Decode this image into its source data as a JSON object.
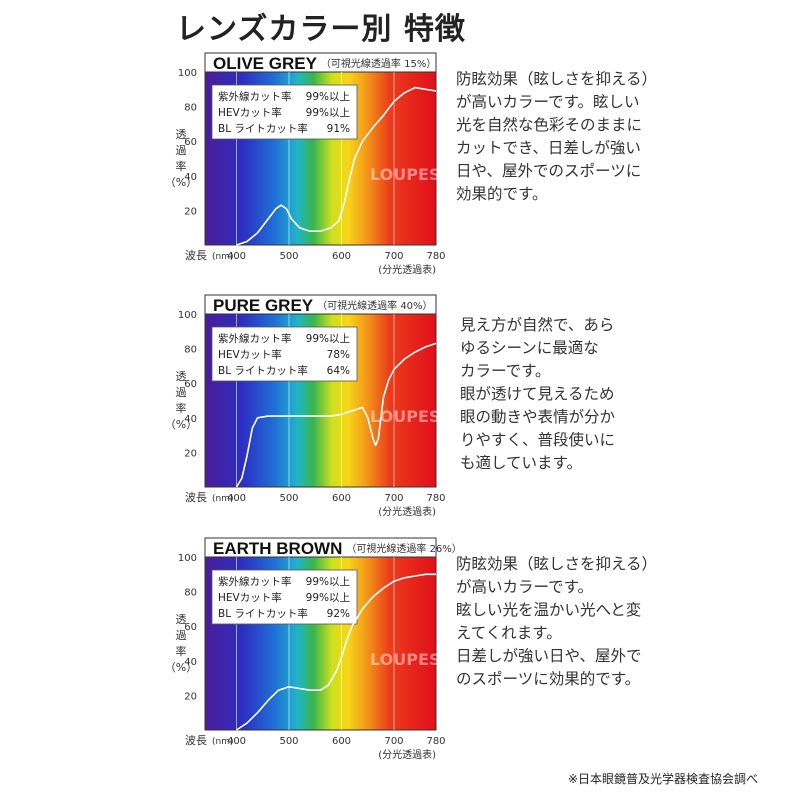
{
  "page_title": "レンズカラー別 特徴",
  "footnote": "※日本眼鏡普及光学器検査協会調べ",
  "watermark": "LOUPES",
  "common": {
    "ylabel": [
      "透",
      "過",
      "率",
      "（%）"
    ],
    "xlabel": "波長",
    "xunit": "(nm)",
    "table_caption": "(分光透過表)"
  },
  "chart_data": [
    {
      "type": "line",
      "title": "OLIVE GREY",
      "subtitle": "（可視光線透過率 15%）",
      "x_ticks": [
        "400",
        "500",
        "600",
        "700",
        "780"
      ],
      "y_ticks": [
        "20",
        "40",
        "60",
        "80",
        "100"
      ],
      "xlim": [
        340,
        780
      ],
      "ylim": [
        0,
        100
      ],
      "stats": [
        {
          "label": "紫外線カット率",
          "value": "99%以上"
        },
        {
          "label": "HEVカット率",
          "value": "99%以上"
        },
        {
          "label": "BL ライトカット率",
          "value": "91%"
        }
      ],
      "x": [
        400,
        420,
        440,
        460,
        475,
        485,
        495,
        505,
        520,
        540,
        560,
        580,
        595,
        605,
        615,
        625,
        640,
        660,
        680,
        700,
        720,
        740,
        760,
        780
      ],
      "y": [
        0,
        2,
        7,
        15,
        21,
        23,
        21,
        15,
        10,
        8,
        8,
        10,
        14,
        24,
        38,
        50,
        60,
        68,
        75,
        83,
        88,
        91,
        90,
        89
      ]
    },
    {
      "type": "line",
      "title": "PURE GREY",
      "subtitle": "（可視光線透過率 40%）",
      "x_ticks": [
        "400",
        "500",
        "600",
        "700",
        "780"
      ],
      "y_ticks": [
        "20",
        "40",
        "60",
        "80",
        "100"
      ],
      "xlim": [
        340,
        780
      ],
      "ylim": [
        0,
        100
      ],
      "stats": [
        {
          "label": "紫外線カット率",
          "value": "99%以上"
        },
        {
          "label": "HEVカット率",
          "value": "78%"
        },
        {
          "label": "BL ライトカット率",
          "value": "64%"
        }
      ],
      "x": [
        400,
        410,
        420,
        430,
        440,
        460,
        500,
        540,
        580,
        600,
        620,
        640,
        650,
        660,
        665,
        670,
        680,
        690,
        700,
        720,
        740,
        760,
        780
      ],
      "y": [
        0,
        5,
        18,
        34,
        40,
        41,
        41,
        41,
        41,
        42,
        44,
        46,
        40,
        28,
        24,
        28,
        52,
        62,
        68,
        74,
        78,
        81,
        83
      ]
    },
    {
      "type": "line",
      "title": "EARTH BROWN",
      "subtitle": "（可視光線透過率 26%）",
      "x_ticks": [
        "400",
        "500",
        "600",
        "700",
        "780"
      ],
      "y_ticks": [
        "20",
        "40",
        "60",
        "80",
        "100"
      ],
      "xlim": [
        340,
        780
      ],
      "ylim": [
        0,
        100
      ],
      "stats": [
        {
          "label": "紫外線カット率",
          "value": "99%以上"
        },
        {
          "label": "HEVカット率",
          "value": "99%以上"
        },
        {
          "label": "BL ライトカット率",
          "value": "92%"
        }
      ],
      "x": [
        400,
        420,
        440,
        460,
        480,
        500,
        520,
        540,
        560,
        575,
        590,
        600,
        610,
        620,
        640,
        660,
        680,
        700,
        720,
        740,
        760,
        780
      ],
      "y": [
        0,
        4,
        10,
        17,
        23,
        25,
        24,
        23,
        23,
        26,
        34,
        42,
        52,
        60,
        70,
        77,
        82,
        86,
        88,
        89,
        90,
        90
      ]
    }
  ],
  "descriptions": [
    [
      "防眩効果（眩しさを抑える）",
      "が高いカラーです。眩しい",
      "光を自然な色彩そのままに",
      "カットでき、日差しが強い",
      "日や、屋外でのスポーツに",
      "効果的です。"
    ],
    [
      "見え方が自然で、あら",
      "ゆるシーンに最適な",
      "カラーです。",
      "眼が透けて見えるため",
      "眼の動きや表情が分か",
      "りやすく、普段使いに",
      "も適しています。"
    ],
    [
      "防眩効果（眩しさを抑える）",
      "が高いカラーです。",
      "眩しい光を温かい光へと変",
      "えてくれます。",
      "日差しが強い日や、屋外で",
      "のスポーツに効果的です。"
    ]
  ]
}
